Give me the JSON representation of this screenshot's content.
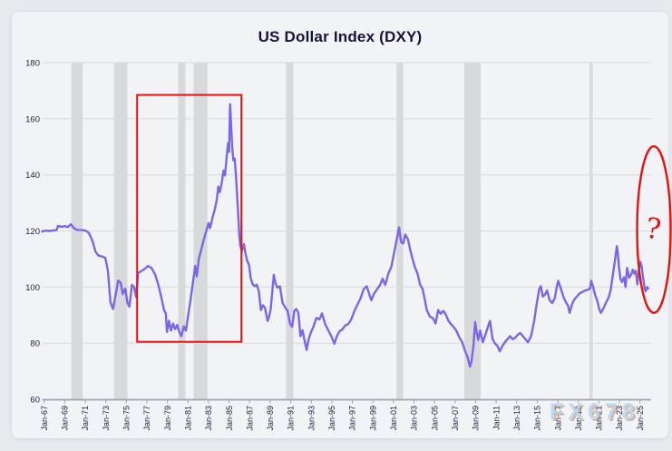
{
  "page": {
    "title": "US Dollar Index (DXY)"
  },
  "watermark": {
    "text": "FX678"
  },
  "chart_data": {
    "type": "line",
    "title": "US Dollar Index (DXY)",
    "xlabel": "",
    "ylabel": "",
    "ylim": [
      60,
      180
    ],
    "y_ticks": [
      60,
      80,
      100,
      120,
      140,
      160,
      180
    ],
    "x_tick_start_year": 1967,
    "x_tick_step": 2,
    "x_tick_labels": [
      "Jan-67",
      "Jan-69",
      "Jan-71",
      "Jan-73",
      "Jan-75",
      "Jan-77",
      "Jan-79",
      "Jan-81",
      "Jan-83",
      "Jan-85",
      "Jan-87",
      "Jan-89",
      "Jan-91",
      "Jan-93",
      "Jan-95",
      "Jan-97",
      "Jan-99",
      "Jan-01",
      "Jan-03",
      "Jan-05",
      "Jan-07",
      "Jan-09",
      "Jan-11",
      "Jan-13",
      "Jan-15",
      "Jan-17",
      "Jan-19",
      "Jan-21",
      "Jan-23",
      "Jan-25"
    ],
    "grid": true,
    "legend": "none",
    "recession_bands": [
      [
        1969.65,
        1970.75
      ],
      [
        1973.8,
        1975.1
      ],
      [
        1980.05,
        1980.75
      ],
      [
        1981.55,
        1982.9
      ],
      [
        1990.55,
        1991.25
      ],
      [
        2001.3,
        2001.95
      ],
      [
        2007.9,
        2009.5
      ],
      [
        2020.1,
        2020.4
      ]
    ],
    "annotations": {
      "red_box": {
        "x_from_year": 1976.05,
        "x_to_year": 1986.2,
        "y_from_value": 80.5,
        "y_to_value": 168.5
      },
      "red_ellipse": {
        "center_year": 2026.35,
        "center_value": 120.5,
        "rx_years": 1.63,
        "ry_value": 29.7
      },
      "question_mark": {
        "text": "?",
        "year": 2026.2,
        "value": 121.0
      }
    },
    "colors": {
      "line": "#7b66e6",
      "band": "#d8d9db",
      "grid": "#d8dade",
      "axis": "#9fa3aa",
      "tick_text": "#23233f",
      "title_text": "#15153c",
      "annotation_red": "#e41310",
      "watermark_blue": "#bdd5ea",
      "card_bg": "#f2f3f7",
      "page_bg": "#e7e9ed"
    },
    "series": [
      {
        "name": "DXY",
        "points": [
          [
            1966.8,
            119.8
          ],
          [
            1967.1,
            120.1
          ],
          [
            1967.5,
            120.0
          ],
          [
            1967.9,
            120.2
          ],
          [
            1968.2,
            120.3
          ],
          [
            1968.35,
            121.8
          ],
          [
            1968.7,
            121.5
          ],
          [
            1969.0,
            121.7
          ],
          [
            1969.3,
            121.4
          ],
          [
            1969.6,
            122.4
          ],
          [
            1969.9,
            121.0
          ],
          [
            1970.2,
            120.4
          ],
          [
            1970.6,
            120.3
          ],
          [
            1971.0,
            120.2
          ],
          [
            1971.35,
            119.3
          ],
          [
            1971.7,
            116.5
          ],
          [
            1972.0,
            112.6
          ],
          [
            1972.3,
            111.2
          ],
          [
            1972.7,
            110.8
          ],
          [
            1972.95,
            110.4
          ],
          [
            1973.2,
            106.0
          ],
          [
            1973.45,
            94.5
          ],
          [
            1973.7,
            92.2
          ],
          [
            1974.0,
            98.0
          ],
          [
            1974.2,
            102.3
          ],
          [
            1974.45,
            101.5
          ],
          [
            1974.65,
            97.5
          ],
          [
            1974.9,
            99.5
          ],
          [
            1975.1,
            94.5
          ],
          [
            1975.3,
            93.0
          ],
          [
            1975.55,
            100.8
          ],
          [
            1975.75,
            100.0
          ],
          [
            1975.95,
            96.5
          ],
          [
            1976.15,
            105.0
          ],
          [
            1976.5,
            105.8
          ],
          [
            1976.8,
            106.5
          ],
          [
            1977.1,
            107.5
          ],
          [
            1977.45,
            106.8
          ],
          [
            1977.8,
            104.5
          ],
          [
            1978.1,
            101.0
          ],
          [
            1978.4,
            96.5
          ],
          [
            1978.65,
            92.0
          ],
          [
            1978.85,
            90.5
          ],
          [
            1978.95,
            84.0
          ],
          [
            1979.15,
            88.0
          ],
          [
            1979.35,
            84.5
          ],
          [
            1979.55,
            87.0
          ],
          [
            1979.75,
            85.0
          ],
          [
            1979.95,
            86.5
          ],
          [
            1980.15,
            84.0
          ],
          [
            1980.35,
            82.5
          ],
          [
            1980.6,
            86.0
          ],
          [
            1980.8,
            84.5
          ],
          [
            1981.05,
            90.5
          ],
          [
            1981.25,
            95.5
          ],
          [
            1981.5,
            102.0
          ],
          [
            1981.7,
            107.5
          ],
          [
            1981.85,
            103.8
          ],
          [
            1982.05,
            110.0
          ],
          [
            1982.3,
            113.5
          ],
          [
            1982.55,
            117.0
          ],
          [
            1982.8,
            120.3
          ],
          [
            1983.0,
            122.8
          ],
          [
            1983.15,
            121.0
          ],
          [
            1983.4,
            125.0
          ],
          [
            1983.6,
            127.5
          ],
          [
            1983.8,
            131.0
          ],
          [
            1983.95,
            135.8
          ],
          [
            1984.1,
            133.8
          ],
          [
            1984.3,
            137.5
          ],
          [
            1984.45,
            141.5
          ],
          [
            1984.6,
            139.8
          ],
          [
            1984.75,
            146.0
          ],
          [
            1984.9,
            151.3
          ],
          [
            1985.0,
            148.2
          ],
          [
            1985.1,
            165.2
          ],
          [
            1985.2,
            157.5
          ],
          [
            1985.3,
            150.0
          ],
          [
            1985.42,
            145.2
          ],
          [
            1985.55,
            145.8
          ],
          [
            1985.7,
            138.0
          ],
          [
            1985.85,
            128.5
          ],
          [
            1986.0,
            118.2
          ],
          [
            1986.1,
            114.9
          ],
          [
            1986.25,
            112.8
          ],
          [
            1986.45,
            115.3
          ],
          [
            1986.6,
            112.0
          ],
          [
            1986.75,
            109.5
          ],
          [
            1986.95,
            107.8
          ],
          [
            1987.1,
            103.2
          ],
          [
            1987.3,
            101.0
          ],
          [
            1987.5,
            100.3
          ],
          [
            1987.7,
            100.8
          ],
          [
            1987.9,
            98.5
          ],
          [
            1988.1,
            91.8
          ],
          [
            1988.3,
            93.5
          ],
          [
            1988.5,
            92.5
          ],
          [
            1988.75,
            87.9
          ],
          [
            1988.9,
            89.5
          ],
          [
            1989.05,
            92.2
          ],
          [
            1989.35,
            104.3
          ],
          [
            1989.5,
            101.5
          ],
          [
            1989.7,
            99.8
          ],
          [
            1989.95,
            100.3
          ],
          [
            1990.2,
            94.4
          ],
          [
            1990.45,
            92.8
          ],
          [
            1990.7,
            91.5
          ],
          [
            1990.95,
            86.8
          ],
          [
            1991.15,
            85.8
          ],
          [
            1991.35,
            91.5
          ],
          [
            1991.55,
            92.2
          ],
          [
            1991.75,
            90.8
          ],
          [
            1991.95,
            82.5
          ],
          [
            1992.15,
            84.6
          ],
          [
            1992.35,
            81.0
          ],
          [
            1992.55,
            77.6
          ],
          [
            1992.75,
            81.5
          ],
          [
            1992.95,
            83.6
          ],
          [
            1993.2,
            85.8
          ],
          [
            1993.5,
            89.0
          ],
          [
            1993.8,
            88.5
          ],
          [
            1994.05,
            90.6
          ],
          [
            1994.35,
            86.8
          ],
          [
            1994.65,
            84.6
          ],
          [
            1994.95,
            82.5
          ],
          [
            1995.25,
            79.8
          ],
          [
            1995.5,
            82.5
          ],
          [
            1995.75,
            84.3
          ],
          [
            1996.0,
            84.8
          ],
          [
            1996.3,
            86.3
          ],
          [
            1996.6,
            86.8
          ],
          [
            1996.9,
            88.5
          ],
          [
            1997.2,
            91.5
          ],
          [
            1997.5,
            93.8
          ],
          [
            1997.8,
            96.0
          ],
          [
            1998.1,
            99.3
          ],
          [
            1998.4,
            100.3
          ],
          [
            1998.7,
            96.8
          ],
          [
            1998.85,
            95.3
          ],
          [
            1999.1,
            97.6
          ],
          [
            1999.4,
            99.2
          ],
          [
            1999.7,
            100.8
          ],
          [
            1999.95,
            103.0
          ],
          [
            2000.2,
            100.8
          ],
          [
            2000.5,
            104.8
          ],
          [
            2000.8,
            107.3
          ],
          [
            2001.05,
            112.0
          ],
          [
            2001.25,
            115.5
          ],
          [
            2001.55,
            121.3
          ],
          [
            2001.75,
            116.0
          ],
          [
            2001.95,
            115.5
          ],
          [
            2002.15,
            118.7
          ],
          [
            2002.4,
            117.2
          ],
          [
            2002.65,
            113.0
          ],
          [
            2002.9,
            109.5
          ],
          [
            2003.1,
            107.0
          ],
          [
            2003.35,
            104.8
          ],
          [
            2003.6,
            100.8
          ],
          [
            2003.85,
            99.2
          ],
          [
            2004.05,
            95.5
          ],
          [
            2004.25,
            91.8
          ],
          [
            2004.55,
            89.5
          ],
          [
            2004.85,
            88.9
          ],
          [
            2005.1,
            87.0
          ],
          [
            2005.35,
            91.8
          ],
          [
            2005.6,
            90.5
          ],
          [
            2005.85,
            91.5
          ],
          [
            2006.1,
            90.2
          ],
          [
            2006.35,
            88.0
          ],
          [
            2006.6,
            86.8
          ],
          [
            2006.85,
            85.8
          ],
          [
            2007.1,
            84.6
          ],
          [
            2007.4,
            82.2
          ],
          [
            2007.7,
            80.3
          ],
          [
            2007.95,
            77.5
          ],
          [
            2008.2,
            75.2
          ],
          [
            2008.45,
            71.6
          ],
          [
            2008.6,
            73.5
          ],
          [
            2008.8,
            79.5
          ],
          [
            2008.95,
            87.5
          ],
          [
            2009.1,
            84.0
          ],
          [
            2009.25,
            81.2
          ],
          [
            2009.45,
            84.5
          ],
          [
            2009.7,
            80.3
          ],
          [
            2009.95,
            83.0
          ],
          [
            2010.2,
            85.8
          ],
          [
            2010.4,
            87.9
          ],
          [
            2010.65,
            81.5
          ],
          [
            2010.9,
            79.8
          ],
          [
            2011.1,
            79.2
          ],
          [
            2011.35,
            77.1
          ],
          [
            2011.6,
            79.0
          ],
          [
            2011.85,
            80.3
          ],
          [
            2012.1,
            81.4
          ],
          [
            2012.35,
            82.5
          ],
          [
            2012.6,
            81.4
          ],
          [
            2012.85,
            81.9
          ],
          [
            2013.1,
            83.0
          ],
          [
            2013.35,
            83.6
          ],
          [
            2013.6,
            82.5
          ],
          [
            2013.85,
            81.4
          ],
          [
            2014.1,
            80.3
          ],
          [
            2014.4,
            82.5
          ],
          [
            2014.7,
            87.9
          ],
          [
            2014.95,
            94.0
          ],
          [
            2015.2,
            99.5
          ],
          [
            2015.35,
            100.3
          ],
          [
            2015.55,
            96.6
          ],
          [
            2015.8,
            97.6
          ],
          [
            2015.95,
            98.8
          ],
          [
            2016.2,
            95.4
          ],
          [
            2016.45,
            94.3
          ],
          [
            2016.7,
            96.0
          ],
          [
            2016.95,
            101.0
          ],
          [
            2017.05,
            102.2
          ],
          [
            2017.3,
            99.5
          ],
          [
            2017.55,
            96.5
          ],
          [
            2017.8,
            94.5
          ],
          [
            2018.0,
            93.3
          ],
          [
            2018.15,
            90.8
          ],
          [
            2018.4,
            94.0
          ],
          [
            2018.65,
            95.8
          ],
          [
            2018.9,
            96.8
          ],
          [
            2019.15,
            97.8
          ],
          [
            2019.4,
            98.2
          ],
          [
            2019.65,
            98.8
          ],
          [
            2019.9,
            99.0
          ],
          [
            2020.15,
            99.5
          ],
          [
            2020.25,
            102.2
          ],
          [
            2020.45,
            100.0
          ],
          [
            2020.65,
            97.0
          ],
          [
            2020.85,
            95.0
          ],
          [
            2021.05,
            92.0
          ],
          [
            2021.2,
            90.8
          ],
          [
            2021.45,
            92.5
          ],
          [
            2021.7,
            94.5
          ],
          [
            2021.95,
            96.3
          ],
          [
            2022.15,
            99.0
          ],
          [
            2022.35,
            104.0
          ],
          [
            2022.55,
            109.0
          ],
          [
            2022.75,
            114.6
          ],
          [
            2022.85,
            112.0
          ],
          [
            2022.95,
            107.5
          ],
          [
            2023.1,
            103.0
          ],
          [
            2023.25,
            101.8
          ],
          [
            2023.45,
            103.5
          ],
          [
            2023.6,
            100.0
          ],
          [
            2023.75,
            106.8
          ],
          [
            2023.95,
            103.3
          ],
          [
            2024.15,
            104.5
          ],
          [
            2024.3,
            106.2
          ],
          [
            2024.45,
            104.8
          ],
          [
            2024.6,
            105.8
          ],
          [
            2024.75,
            101.0
          ],
          [
            2024.9,
            106.0
          ],
          [
            2025.05,
            109.0
          ],
          [
            2025.15,
            107.5
          ],
          [
            2025.3,
            103.5
          ],
          [
            2025.45,
            99.5
          ],
          [
            2025.55,
            98.5
          ],
          [
            2025.7,
            100.0
          ],
          [
            2025.8,
            99.5
          ]
        ]
      }
    ]
  }
}
